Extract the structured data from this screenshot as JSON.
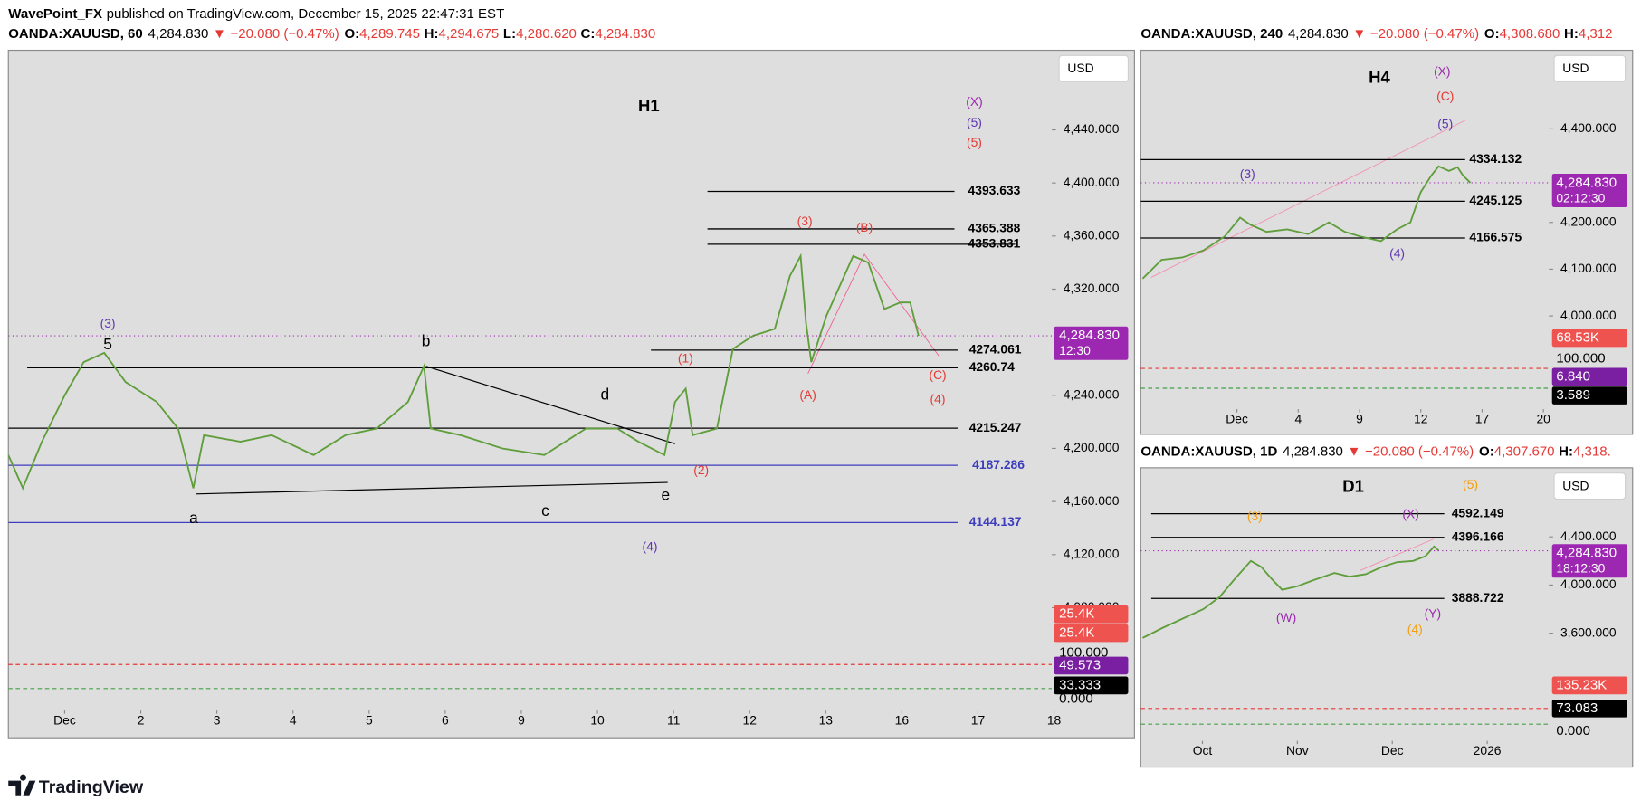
{
  "header": {
    "author": "WavePoint_FX",
    "published": "published on TradingView.com, December 15, 2025 22:47:31 EST"
  },
  "footer": {
    "logo": "TradingView"
  },
  "chart_data": [
    {
      "type": "line",
      "title": "H1",
      "quote": {
        "symbol": "OANDA:XAUUSD, 60",
        "last": "4,284.830",
        "arrow": "▼",
        "change": "−20.080 (−0.47%)",
        "ohlc": [
          {
            "key": "O:",
            "value": "4,289.745"
          },
          {
            "key": "H:",
            "value": "4,294.675"
          },
          {
            "key": "L:",
            "value": "4,280.620"
          },
          {
            "key": "C:",
            "value": "4,284.830"
          }
        ]
      },
      "currency": "USD",
      "color": "#5f9e3a",
      "x": [
        -0.74,
        -0.55,
        -0.3,
        0,
        0.25,
        0.52,
        0.8,
        1.21,
        1.49,
        1.69,
        1.83,
        2.31,
        2.72,
        3.27,
        3.69,
        4.1,
        4.51,
        4.72,
        4.81,
        5.2,
        5.75,
        6.3,
        6.85,
        7.26,
        7.54,
        7.88,
        8.02,
        8.16,
        8.25,
        8.57,
        8.78,
        9.05,
        9.33,
        9.53,
        9.67,
        9.74,
        9.81,
        10.01,
        10.36,
        10.56,
        10.77,
        10.98,
        11.11,
        11.22
      ],
      "values": [
        4195,
        4170,
        4205,
        4240,
        4265,
        4272,
        4250,
        4235,
        4215,
        4170,
        4210,
        4205,
        4210,
        4195,
        4210,
        4215,
        4235,
        4262,
        4215,
        4210,
        4200,
        4195,
        4215,
        4215,
        4205,
        4195,
        4235,
        4245,
        4210,
        4215,
        4275,
        4285,
        4290,
        4330,
        4345,
        4295,
        4265,
        4300,
        4345,
        4340,
        4305,
        4310,
        4310,
        4284.83
      ],
      "xlim": [
        -0.74,
        12.97
      ],
      "xticks": [
        {
          "value": 0,
          "label": "Dec"
        },
        {
          "value": 1,
          "label": "2"
        },
        {
          "value": 2,
          "label": "3"
        },
        {
          "value": 3,
          "label": "4"
        },
        {
          "value": 4,
          "label": "5"
        },
        {
          "value": 5,
          "label": "6"
        },
        {
          "value": 6,
          "label": "9"
        },
        {
          "value": 7,
          "label": "10"
        },
        {
          "value": 8,
          "label": "11"
        },
        {
          "value": 9,
          "label": "12"
        },
        {
          "value": 10,
          "label": "13"
        },
        {
          "value": 11,
          "label": "16"
        },
        {
          "value": 12,
          "label": "17"
        },
        {
          "value": 13,
          "label": "18"
        }
      ],
      "ylim": [
        4049,
        4500
      ],
      "yticks": [
        {
          "value": 4440,
          "label": "4,440.000"
        },
        {
          "value": 4400,
          "label": "4,400.000"
        },
        {
          "value": 4360,
          "label": "4,360.000"
        },
        {
          "value": 4320,
          "label": "4,320.000"
        },
        {
          "value": 4240,
          "label": "4,240.000"
        },
        {
          "value": 4200,
          "label": "4,200.000"
        },
        {
          "value": 4160,
          "label": "4,160.000"
        },
        {
          "value": 4120,
          "label": "4,120.000"
        },
        {
          "value": 4080,
          "label": "4,080.000"
        }
      ],
      "levels": [
        {
          "value": 4393.633,
          "color": "#000000"
        },
        {
          "value": 4365.388,
          "color": "#000000"
        },
        {
          "value": 4353.831,
          "color": "#000000"
        },
        {
          "value": 4274.061,
          "color": "#000000"
        },
        {
          "value": 4260.74,
          "color": "#000000"
        },
        {
          "value": 4215.247,
          "color": "#000000"
        },
        {
          "value": 4187.286,
          "color": "#3d3dbf"
        },
        {
          "value": 4144.137,
          "color": "#3d3dbf"
        }
      ],
      "annotations": [
        {
          "text": "(X)",
          "color": "#9c27b0"
        },
        {
          "text": "(5)",
          "color": "#5e35b1"
        },
        {
          "text": "(5)",
          "color": "#e53935"
        },
        {
          "text": "(3)",
          "color": "#5e35b1"
        },
        {
          "text": "5",
          "color": "#000000"
        },
        {
          "text": "b",
          "color": "#000000"
        },
        {
          "text": "d",
          "color": "#000000"
        },
        {
          "text": "a",
          "color": "#000000"
        },
        {
          "text": "c",
          "color": "#000000"
        },
        {
          "text": "e",
          "color": "#000000"
        },
        {
          "text": "(4)",
          "color": "#5e35b1"
        },
        {
          "text": "(1)",
          "color": "#e53935"
        },
        {
          "text": "(2)",
          "color": "#e53935"
        },
        {
          "text": "(3)",
          "color": "#e53935"
        },
        {
          "text": "(B)",
          "color": "#e53935"
        },
        {
          "text": "(A)",
          "color": "#e53935"
        },
        {
          "text": "(C)",
          "color": "#e53935"
        },
        {
          "text": "(4)",
          "color": "#e53935"
        }
      ],
      "side_labels": [
        {
          "text": "4,284.830",
          "sub": "12:30",
          "color": "#9c27b0"
        },
        {
          "text": "25.4K",
          "color": "#ef5350"
        },
        {
          "text": "25.4K",
          "color": "#ef5350"
        },
        {
          "text": "100.000"
        },
        {
          "text": "49.573",
          "color": "#7b1fa2"
        },
        {
          "text": "33.333",
          "color": "#000000"
        },
        {
          "text": "0.000"
        }
      ]
    },
    {
      "type": "line",
      "title": "H4",
      "quote": {
        "symbol": "OANDA:XAUUSD, 240",
        "last": "4,284.830",
        "arrow": "▼",
        "change": "−20.080 (−0.47%)",
        "ohlc": [
          {
            "key": "O:",
            "value": "4,308.680"
          },
          {
            "key": "H:",
            "value": "4,312"
          }
        ]
      },
      "currency": "USD",
      "color": "#5f9e3a",
      "x": [
        -1.54,
        -1.23,
        -0.89,
        -0.55,
        -0.2,
        0.05,
        0.22,
        0.48,
        0.82,
        1.16,
        1.5,
        1.76,
        2.01,
        2.35,
        2.61,
        2.83,
        3.0,
        3.17,
        3.29,
        3.46,
        3.6,
        3.69,
        3.81
      ],
      "values": [
        4080,
        4120,
        4125,
        4140,
        4170,
        4210,
        4195,
        4180,
        4185,
        4175,
        4200,
        4180,
        4170,
        4160,
        4185,
        4200,
        4265,
        4300,
        4320,
        4310,
        4318,
        4300,
        4284.83
      ],
      "xlim": [
        -1.57,
        5.09
      ],
      "xticks": [
        {
          "value": 0,
          "label": "Dec"
        },
        {
          "value": 1,
          "label": "4"
        },
        {
          "value": 2,
          "label": "9"
        },
        {
          "value": 3,
          "label": "12"
        },
        {
          "value": 4,
          "label": "17"
        },
        {
          "value": 5,
          "label": "20"
        }
      ],
      "ylim": [
        3926,
        4568
      ],
      "yticks": [
        {
          "value": 4400,
          "label": "4,400.000"
        },
        {
          "value": 4200,
          "label": "4,200.000"
        },
        {
          "value": 4100,
          "label": "4,100.000"
        },
        {
          "value": 4000,
          "label": "4,000.000"
        }
      ],
      "levels": [
        {
          "value": 4334.132,
          "color": "#000000"
        },
        {
          "value": 4245.125,
          "color": "#000000"
        },
        {
          "value": 4166.575,
          "color": "#000000"
        }
      ],
      "annotations": [
        {
          "text": "(X)",
          "color": "#9c27b0"
        },
        {
          "text": "(C)",
          "color": "#e53935"
        },
        {
          "text": "(5)",
          "color": "#5e35b1"
        },
        {
          "text": "(3)",
          "color": "#5e35b1"
        },
        {
          "text": "(4)",
          "color": "#5e35b1"
        }
      ],
      "side_labels": [
        {
          "text": "4,284.830",
          "sub": "02:12:30",
          "color": "#9c27b0"
        },
        {
          "text": "68.53K",
          "color": "#ef5350"
        },
        {
          "text": "100.000"
        },
        {
          "text": "6.840",
          "color": "#7b1fa2"
        },
        {
          "text": "3.589",
          "color": "#000000"
        }
      ]
    },
    {
      "type": "line",
      "title": "D1",
      "quote": {
        "symbol": "OANDA:XAUUSD, 1D",
        "last": "4,284.830",
        "arrow": "▼",
        "change": "−20.080 (−0.47%)",
        "ohlc": [
          {
            "key": "O:",
            "value": "4,307.670"
          },
          {
            "key": "H:",
            "value": "4,318."
          }
        ]
      },
      "currency": "USD",
      "color": "#5f9e3a",
      "x": [
        -0.63,
        -0.43,
        -0.21,
        0.01,
        0.18,
        0.34,
        0.51,
        0.62,
        0.73,
        0.84,
        1.0,
        1.17,
        1.39,
        1.55,
        1.72,
        1.89,
        2.05,
        2.22,
        2.35,
        2.44,
        2.49
      ],
      "values": [
        3560,
        3640,
        3720,
        3800,
        3900,
        4050,
        4200,
        4150,
        4050,
        3960,
        3990,
        4040,
        4100,
        4070,
        4090,
        4150,
        4190,
        4200,
        4240,
        4320,
        4284.83
      ],
      "xlim": [
        -0.65,
        3.65
      ],
      "xticks": [
        {
          "value": 0,
          "label": "Oct"
        },
        {
          "value": 1,
          "label": "Nov"
        },
        {
          "value": 2,
          "label": "Dec"
        },
        {
          "value": 3,
          "label": "2026"
        }
      ],
      "ylim": [
        3470,
        4974
      ],
      "yticks": [
        {
          "value": 4400,
          "label": "4,400.000"
        },
        {
          "value": 4000,
          "label": "4,000.000"
        },
        {
          "value": 3600,
          "label": "3,600.000"
        }
      ],
      "levels": [
        {
          "value": 4592.149,
          "color": "#000000"
        },
        {
          "value": 4396.166,
          "color": "#000000"
        },
        {
          "value": 3888.722,
          "color": "#000000"
        }
      ],
      "annotations": [
        {
          "text": "(5)",
          "color": "#f59e0b"
        },
        {
          "text": "(3)",
          "color": "#f59e0b"
        },
        {
          "text": "(X)",
          "color": "#9c27b0"
        },
        {
          "text": "(W)",
          "color": "#9c27b0"
        },
        {
          "text": "(Y)",
          "color": "#9c27b0"
        },
        {
          "text": "(4)",
          "color": "#f59e0b"
        }
      ],
      "side_labels": [
        {
          "text": "4,284.830",
          "sub": "18:12:30",
          "color": "#9c27b0"
        },
        {
          "text": "135.23K",
          "color": "#ef5350"
        },
        {
          "text": "73.083",
          "color": "#000000"
        },
        {
          "text": "0.000"
        }
      ]
    }
  ]
}
